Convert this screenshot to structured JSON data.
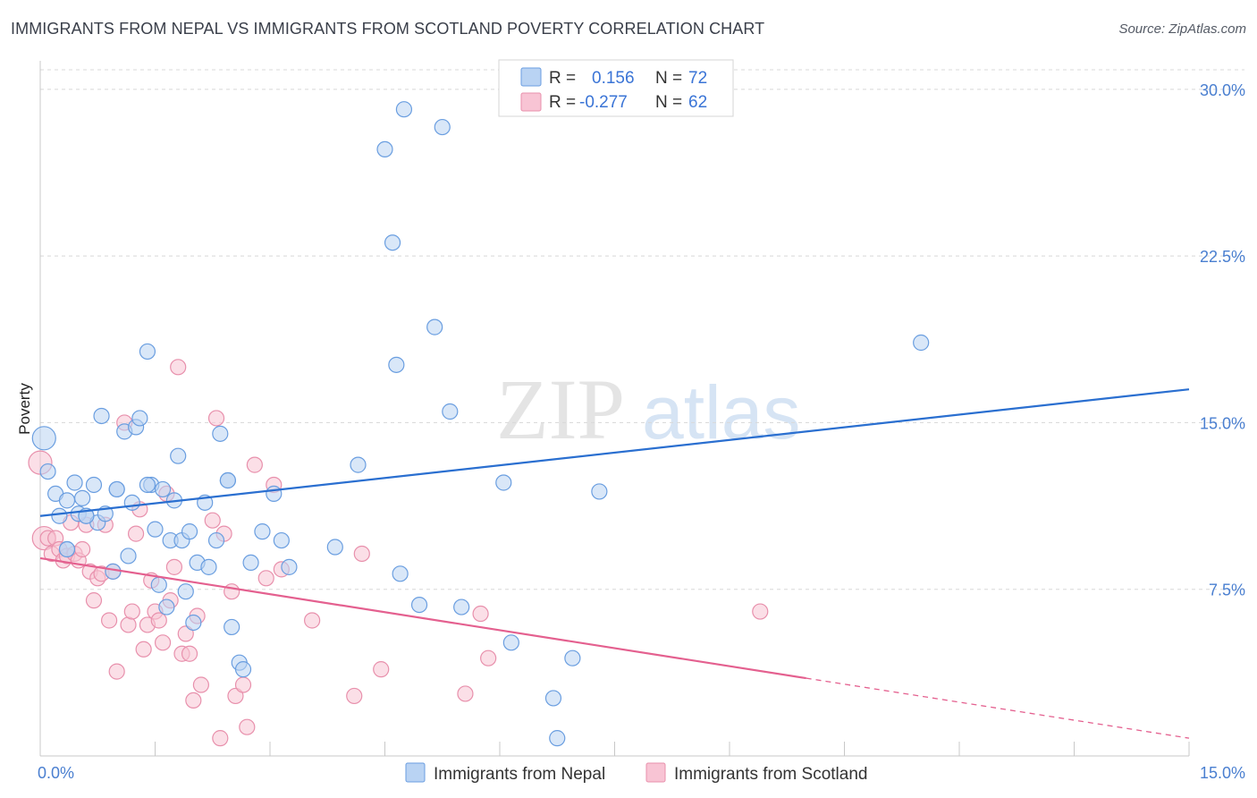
{
  "header": {
    "title": "IMMIGRANTS FROM NEPAL VS IMMIGRANTS FROM SCOTLAND POVERTY CORRELATION CHART",
    "source": "Source: ZipAtlas.com"
  },
  "colors": {
    "nepal_fill": "#b9d3f3",
    "nepal_stroke": "#6a9ee0",
    "nepal_line": "#2a6fd0",
    "scotland_fill": "#f8c4d4",
    "scotland_stroke": "#e890ac",
    "scotland_line": "#e4608f",
    "grid": "#d8d8d8",
    "tick_text": "#4a7fd0"
  },
  "legend": {
    "r_label": "R =",
    "n_label": "N =",
    "nepal_r": "0.156",
    "nepal_n": "72",
    "scotland_r": "-0.277",
    "scotland_n": "62"
  },
  "watermark": {
    "zip": "ZIP",
    "atlas": "atlas"
  },
  "chart_data": {
    "type": "scatter",
    "title": "IMMIGRANTS FROM NEPAL VS IMMIGRANTS FROM SCOTLAND POVERTY CORRELATION CHART",
    "xlabel": "",
    "ylabel": "Poverty",
    "xlim": [
      0,
      15
    ],
    "ylim": [
      0,
      31
    ],
    "x_ticks": [
      {
        "value": 0,
        "label": "0.0%"
      },
      {
        "value": 15,
        "label": "15.0%"
      }
    ],
    "y_ticks": [
      {
        "value": 7.5,
        "label": "7.5%"
      },
      {
        "value": 15,
        "label": "15.0%"
      },
      {
        "value": 22.5,
        "label": "22.5%"
      },
      {
        "value": 30,
        "label": "30.0%"
      }
    ],
    "legend_position": "bottom-center",
    "series": [
      {
        "name": "Immigrants from Nepal",
        "R": 0.156,
        "N": 72,
        "trend": {
          "x0": 0,
          "y0": 10.8,
          "x1": 15,
          "y1": 16.5,
          "dash_from": null
        },
        "points": [
          [
            0.05,
            14.3
          ],
          [
            0.1,
            12.8
          ],
          [
            0.2,
            11.8
          ],
          [
            0.25,
            10.8
          ],
          [
            0.35,
            11.5
          ],
          [
            0.35,
            9.3
          ],
          [
            0.45,
            12.3
          ],
          [
            0.5,
            10.9
          ],
          [
            0.55,
            11.6
          ],
          [
            0.6,
            10.8
          ],
          [
            0.7,
            12.2
          ],
          [
            0.75,
            10.5
          ],
          [
            0.8,
            15.3
          ],
          [
            0.85,
            10.9
          ],
          [
            0.95,
            8.3
          ],
          [
            1.0,
            12.0
          ],
          [
            1.1,
            14.6
          ],
          [
            1.15,
            9.0
          ],
          [
            1.2,
            11.4
          ],
          [
            1.25,
            14.8
          ],
          [
            1.3,
            15.2
          ],
          [
            1.4,
            18.2
          ],
          [
            1.45,
            12.2
          ],
          [
            1.5,
            10.2
          ],
          [
            1.55,
            7.7
          ],
          [
            1.6,
            12.0
          ],
          [
            1.65,
            6.7
          ],
          [
            1.7,
            9.7
          ],
          [
            1.75,
            11.5
          ],
          [
            1.8,
            13.5
          ],
          [
            1.85,
            9.7
          ],
          [
            1.9,
            7.4
          ],
          [
            1.95,
            10.1
          ],
          [
            2.0,
            6.0
          ],
          [
            2.05,
            8.7
          ],
          [
            2.15,
            11.4
          ],
          [
            2.2,
            8.5
          ],
          [
            2.3,
            9.7
          ],
          [
            2.35,
            14.5
          ],
          [
            2.45,
            12.4
          ],
          [
            2.5,
            5.8
          ],
          [
            2.6,
            4.2
          ],
          [
            2.65,
            3.9
          ],
          [
            2.75,
            8.7
          ],
          [
            2.9,
            10.1
          ],
          [
            3.05,
            11.8
          ],
          [
            3.15,
            9.7
          ],
          [
            3.25,
            8.5
          ],
          [
            3.85,
            9.4
          ],
          [
            4.15,
            13.1
          ],
          [
            4.5,
            27.3
          ],
          [
            4.6,
            23.1
          ],
          [
            4.65,
            17.6
          ],
          [
            4.7,
            8.2
          ],
          [
            4.75,
            29.1
          ],
          [
            4.95,
            6.8
          ],
          [
            5.15,
            19.3
          ],
          [
            5.25,
            28.3
          ],
          [
            5.35,
            15.5
          ],
          [
            5.5,
            6.7
          ],
          [
            6.05,
            12.3
          ],
          [
            6.15,
            5.1
          ],
          [
            6.7,
            2.6
          ],
          [
            6.75,
            0.8
          ],
          [
            6.95,
            4.4
          ],
          [
            7.3,
            11.9
          ],
          [
            11.5,
            18.6
          ],
          [
            1.0,
            12.0
          ],
          [
            2.45,
            12.4
          ],
          [
            0.35,
            9.3
          ],
          [
            1.4,
            12.2
          ],
          [
            0.6,
            10.8
          ]
        ]
      },
      {
        "name": "Immigrants from Scotland",
        "R": -0.277,
        "N": 62,
        "trend": {
          "x0": 0,
          "y0": 8.9,
          "x1": 15,
          "y1": 0.8,
          "dash_from": 10.0
        },
        "points": [
          [
            0.0,
            13.2
          ],
          [
            0.05,
            9.8
          ],
          [
            0.1,
            9.8
          ],
          [
            0.15,
            9.1
          ],
          [
            0.2,
            9.8
          ],
          [
            0.25,
            9.3
          ],
          [
            0.3,
            8.8
          ],
          [
            0.35,
            9.0
          ],
          [
            0.4,
            10.5
          ],
          [
            0.45,
            9.1
          ],
          [
            0.5,
            8.8
          ],
          [
            0.55,
            9.3
          ],
          [
            0.6,
            10.4
          ],
          [
            0.65,
            8.3
          ],
          [
            0.7,
            7.0
          ],
          [
            0.75,
            8.0
          ],
          [
            0.8,
            8.2
          ],
          [
            0.85,
            10.4
          ],
          [
            0.9,
            6.1
          ],
          [
            0.95,
            8.3
          ],
          [
            1.0,
            3.8
          ],
          [
            1.1,
            15.0
          ],
          [
            1.15,
            5.9
          ],
          [
            1.2,
            6.5
          ],
          [
            1.25,
            10.0
          ],
          [
            1.3,
            11.1
          ],
          [
            1.35,
            4.8
          ],
          [
            1.4,
            5.9
          ],
          [
            1.45,
            7.9
          ],
          [
            1.5,
            6.5
          ],
          [
            1.55,
            6.1
          ],
          [
            1.6,
            5.1
          ],
          [
            1.65,
            11.8
          ],
          [
            1.7,
            7.0
          ],
          [
            1.75,
            8.5
          ],
          [
            1.8,
            17.5
          ],
          [
            1.85,
            4.6
          ],
          [
            1.9,
            5.5
          ],
          [
            1.95,
            4.6
          ],
          [
            2.0,
            2.5
          ],
          [
            2.05,
            6.3
          ],
          [
            2.1,
            3.2
          ],
          [
            2.25,
            10.6
          ],
          [
            2.3,
            15.2
          ],
          [
            2.35,
            0.8
          ],
          [
            2.4,
            10.0
          ],
          [
            2.5,
            7.4
          ],
          [
            2.55,
            2.7
          ],
          [
            2.65,
            3.2
          ],
          [
            2.7,
            1.3
          ],
          [
            2.8,
            13.1
          ],
          [
            2.95,
            8.0
          ],
          [
            3.05,
            12.2
          ],
          [
            3.15,
            8.4
          ],
          [
            3.55,
            6.1
          ],
          [
            4.1,
            2.7
          ],
          [
            4.2,
            9.1
          ],
          [
            4.45,
            3.9
          ],
          [
            5.55,
            2.8
          ],
          [
            5.75,
            6.4
          ],
          [
            5.85,
            4.4
          ],
          [
            9.4,
            6.5
          ]
        ]
      }
    ]
  }
}
